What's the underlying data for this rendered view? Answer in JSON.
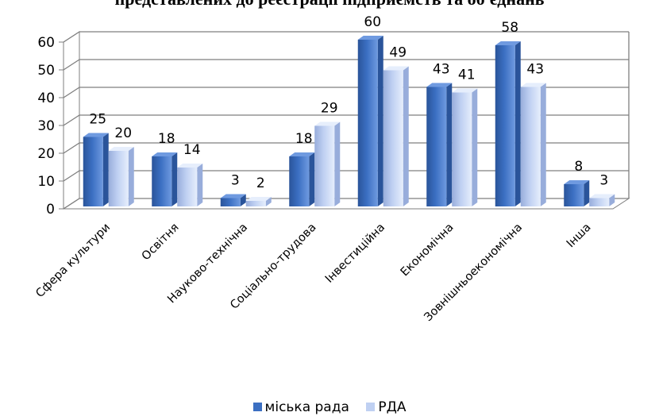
{
  "title": "представлених до реєстрації підприємств та об'єднань",
  "colors": {
    "series1_front": "#3b6fc2",
    "series1_side": "#2a549a",
    "series1_top": "#6f9ae0",
    "series2_front": "#bfd0f2",
    "series2_side": "#98addb",
    "series2_top": "#e6eefc",
    "grid": "#7f7f7f",
    "wall": "#ffffff"
  },
  "chart_data": {
    "type": "bar",
    "categories": [
      "Сфера культури",
      "Освітня",
      "Науково-технічна",
      "Соціально-трудова",
      "Інвестиційна",
      "Економічна",
      "Зовнішньоекономічна",
      "Інша"
    ],
    "series": [
      {
        "name": "міська рада",
        "values": [
          25,
          18,
          3,
          18,
          60,
          43,
          58,
          8
        ]
      },
      {
        "name": "РДА",
        "values": [
          20,
          14,
          2,
          29,
          49,
          41,
          43,
          3
        ]
      }
    ],
    "y_ticks": [
      "0",
      "10",
      "20",
      "30",
      "40",
      "50",
      "60"
    ],
    "ylim": [
      0,
      60
    ],
    "grid": true,
    "legend_position": "bottom",
    "style": "3d-clustered-column"
  }
}
